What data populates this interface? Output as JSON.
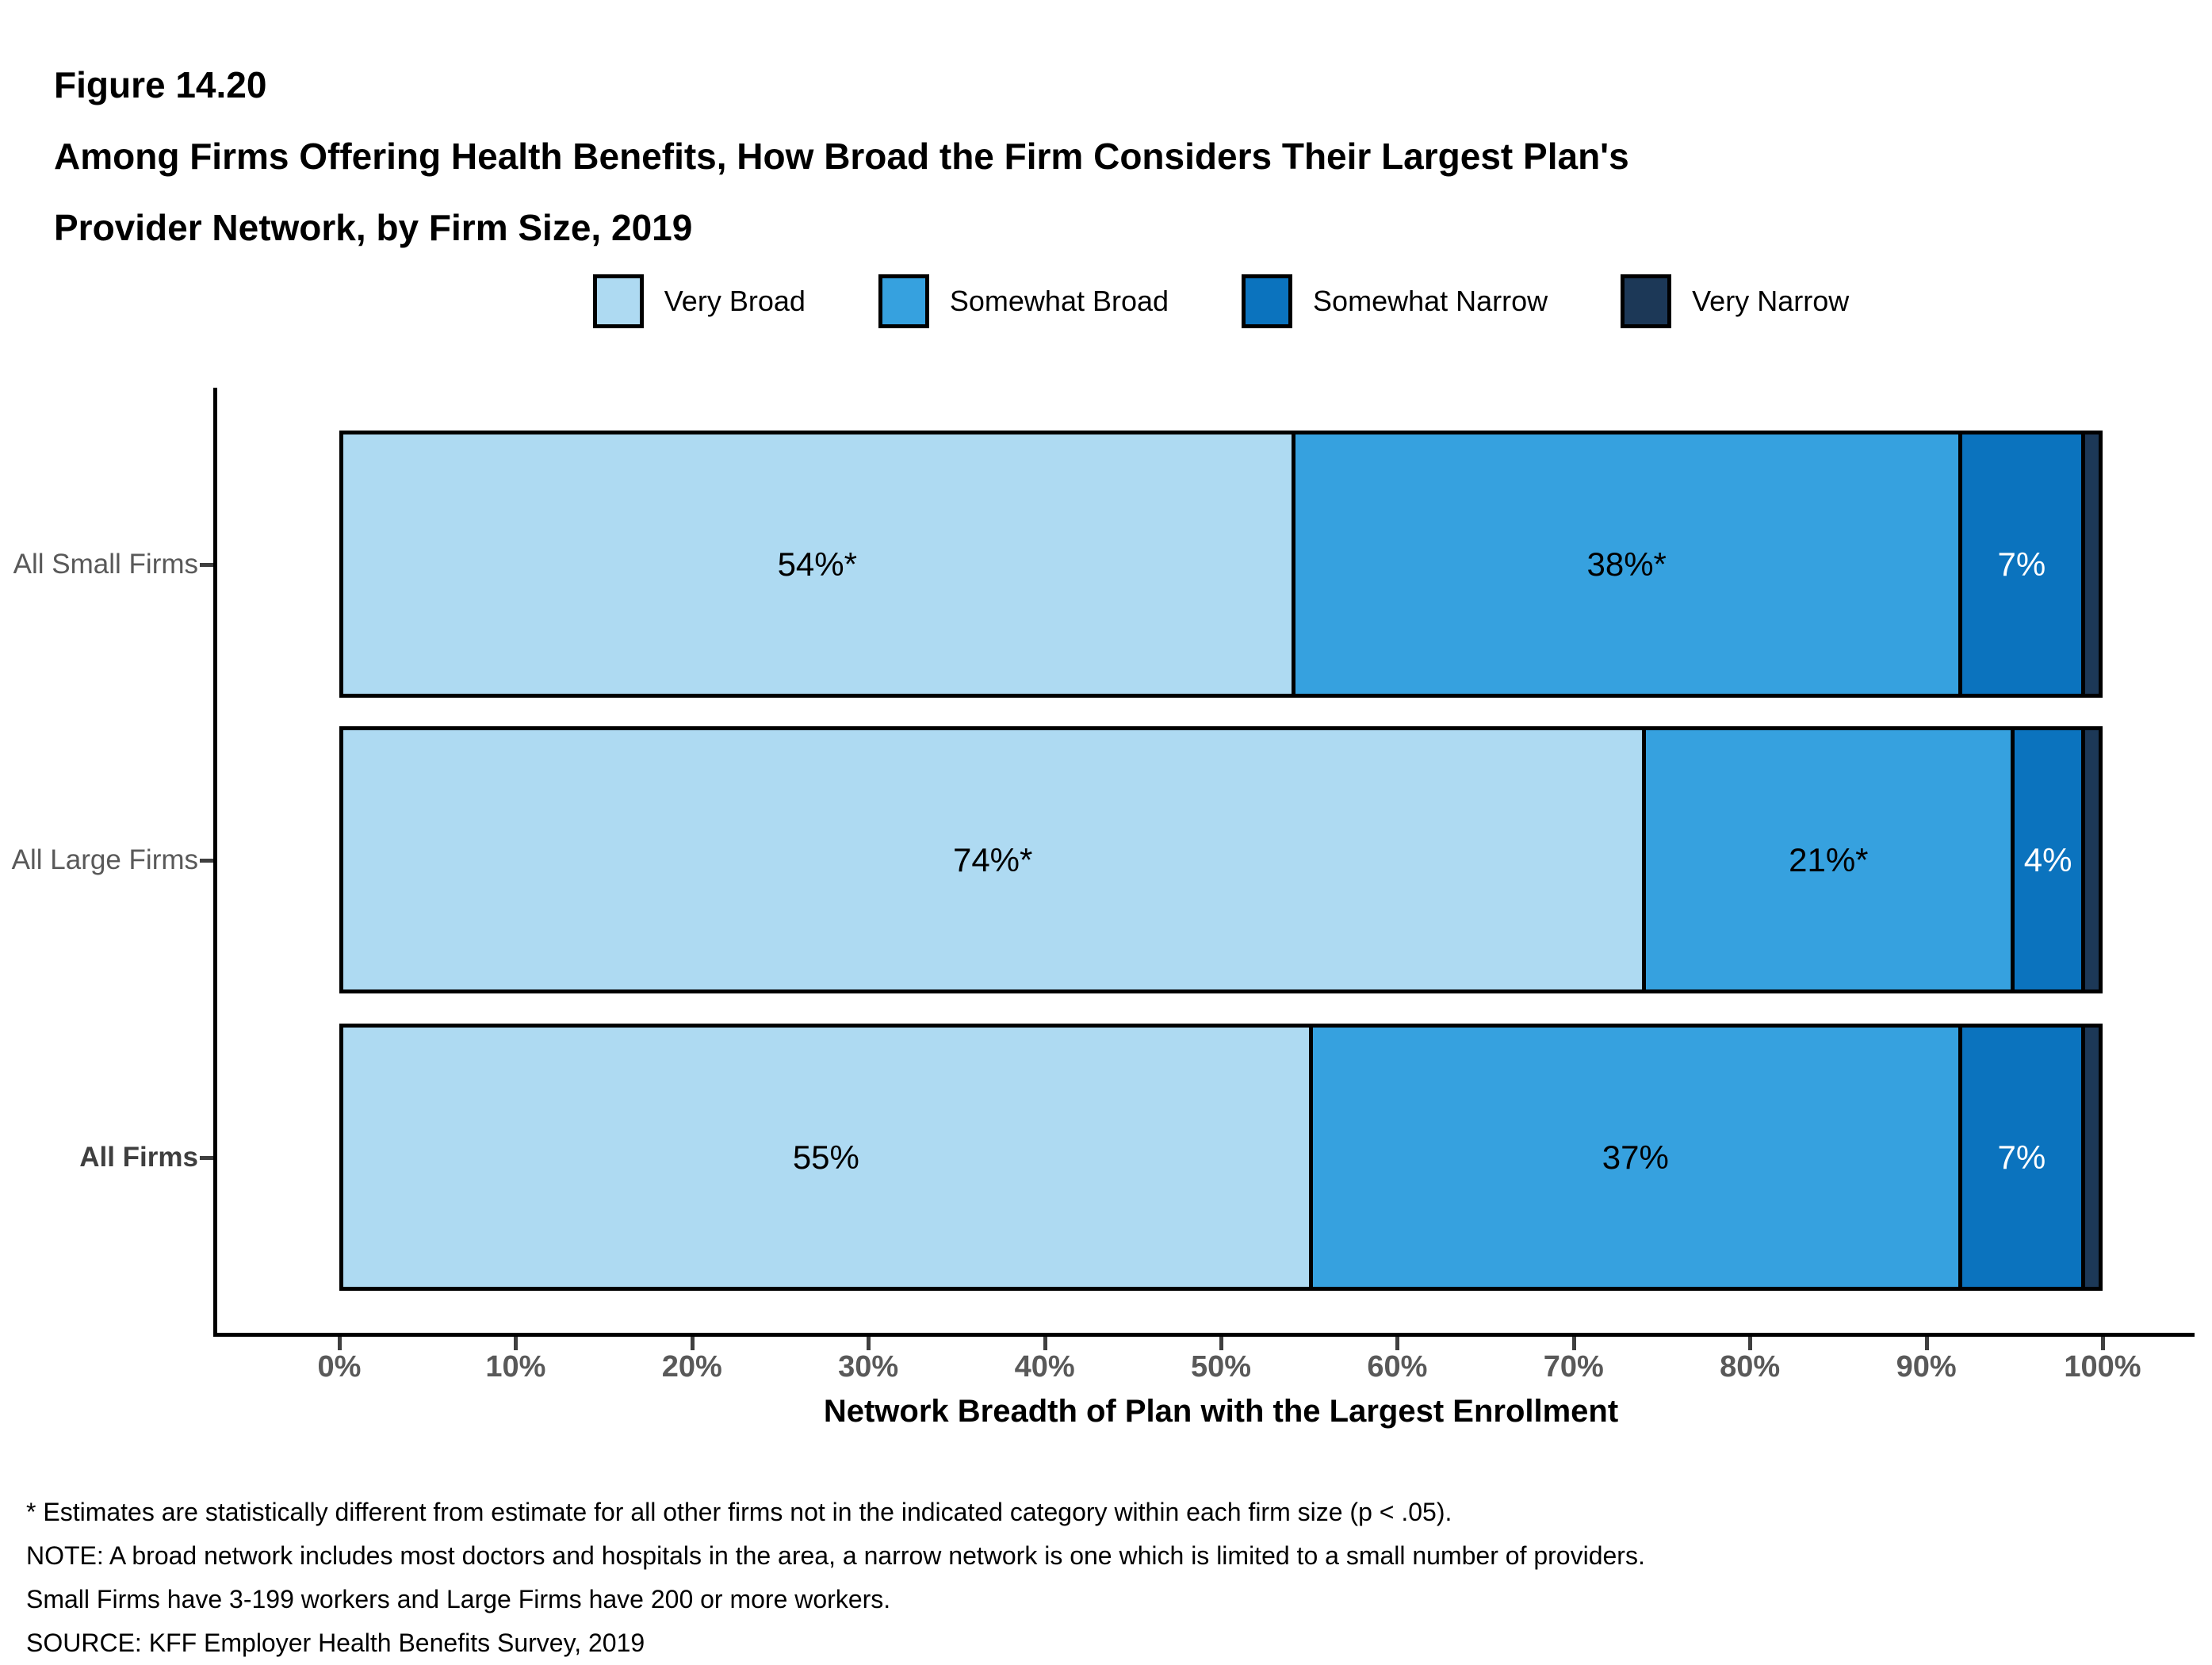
{
  "figure": {
    "label": "Figure 14.20",
    "title_lines": [
      "Among Firms Offering Health Benefits, How Broad the Firm Considers Their Largest Plan's",
      "Provider Network, by Firm Size, 2019"
    ]
  },
  "chart_data": {
    "type": "bar",
    "orientation": "horizontal_stacked",
    "title": "Among Firms Offering Health Benefits, How Broad the Firm Considers Their Largest Plan's Provider Network, by Firm Size, 2019",
    "categories": [
      "All Small Firms",
      "All Large Firms",
      "All Firms"
    ],
    "category_emphasis": [
      false,
      false,
      true
    ],
    "series": [
      {
        "name": "Very Broad",
        "color": "#AEDAF2",
        "values": [
          54,
          74,
          55
        ],
        "bar_labels": [
          "54%*",
          "74%*",
          "55%"
        ],
        "label_color": "#000000"
      },
      {
        "name": "Somewhat Broad",
        "color": "#36A1DF",
        "values": [
          38,
          21,
          37
        ],
        "bar_labels": [
          "38%*",
          "21%*",
          "37%"
        ],
        "label_color": "#000000"
      },
      {
        "name": "Somewhat Narrow",
        "color": "#0B73BE",
        "values": [
          7,
          4,
          7
        ],
        "bar_labels": [
          "7%",
          "4%",
          "7%"
        ],
        "label_color": "#FFFFFF"
      },
      {
        "name": "Very Narrow",
        "color": "#1C3857",
        "values": [
          1,
          1,
          1
        ],
        "bar_labels": [
          "",
          "",
          ""
        ],
        "label_color": "#FFFFFF"
      }
    ],
    "xlabel": "Network Breadth of Plan with the Largest Enrollment",
    "x_ticks": [
      "0%",
      "10%",
      "20%",
      "30%",
      "40%",
      "50%",
      "60%",
      "70%",
      "80%",
      "90%",
      "100%"
    ],
    "xlim": [
      0,
      100
    ],
    "legend_position": "top",
    "grid": false,
    "axis_color": "#000000",
    "tick_label_color": "#595959"
  },
  "footnotes": {
    "lines": [
      "* Estimates are statistically different from estimate for all other firms not in the indicated category within each firm size (p < .05).",
      "NOTE: A broad network includes most doctors and hospitals in the area, a narrow network is one which is limited to a small number of providers.",
      "Small Firms have 3-199 workers and Large Firms have 200 or more workers.",
      "SOURCE: KFF Employer Health Benefits Survey, 2019"
    ]
  }
}
